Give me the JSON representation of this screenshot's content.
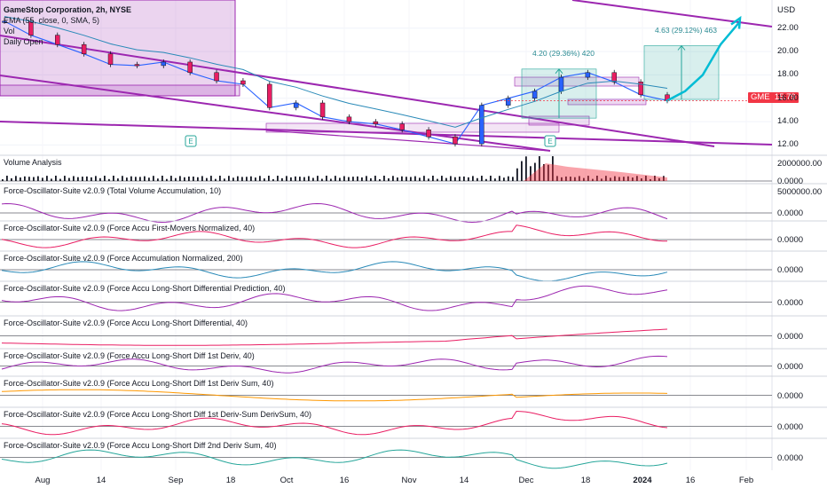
{
  "header": {
    "title": "GameStop Corporation, 2h, NYSE",
    "indicators": [
      "EMA (55, close, 0, SMA, 5)",
      "Vol",
      "Daily Open"
    ],
    "currency": "USD",
    "symbol": "GME",
    "last_price": "15.79"
  },
  "annotations": {
    "range1": "4.20 (29.36%) 420",
    "range2": "4.63 (29.12%) 463",
    "earnings_marker": "E"
  },
  "panes": [
    {
      "title": "Volume Analysis",
      "ticks": [
        "2000000.00",
        "0.0000"
      ]
    },
    {
      "title": "Force-Oscillator-Suite v2.0.9 (Total Volume Accumulation, 10)",
      "ticks": [
        "5000000.00",
        "0.0000"
      ]
    },
    {
      "title": "Force-Oscillator-Suite v2.0.9 (Force Accu First-Movers Normalized, 40)",
      "ticks": [
        "0.0000"
      ]
    },
    {
      "title": "Force-Oscillator-Suite v2.0.9 (Force Accumulation Normalized, 200)",
      "ticks": [
        "0.0000"
      ]
    },
    {
      "title": "Force-Oscillator-Suite v2.0.9 (Force Accu Long-Short Differential Prediction, 40)",
      "ticks": [
        "0.0000"
      ]
    },
    {
      "title": "Force-Oscillator-Suite v2.0.9 (Force Accu Long-Short Differential, 40)",
      "ticks": [
        "0.0000"
      ]
    },
    {
      "title": "Force-Oscillator-Suite v2.0.9 (Force Accu Long-Short Diff 1st Deriv, 40)",
      "ticks": [
        "0.0000"
      ]
    },
    {
      "title": "Force-Oscillator-Suite v2.0.9 (Force Accu Long-Short Diff 1st Deriv Sum, 40)",
      "ticks": [
        "0.0000"
      ]
    },
    {
      "title": "Force-Oscillator-Suite v2.0.9 (Force Accu Long-Short Diff 1st Deriv-Sum DerivSum, 40)",
      "ticks": [
        "0.0000"
      ]
    },
    {
      "title": "Force-Oscillator-Suite v2.0.9 (Force Accu Long-Short Diff 2nd Deriv Sum, 40)",
      "ticks": [
        "0.0000"
      ]
    }
  ],
  "chart_data": {
    "type": "line",
    "symbol": "GME",
    "interval": "2h",
    "price_axis_ticks": [
      "22.00",
      "20.00",
      "18.00",
      "16.00",
      "14.00",
      "12.00"
    ],
    "time_axis_labels": [
      "Aug",
      "14",
      "Sep",
      "18",
      "Oct",
      "16",
      "Nov",
      "14",
      "Dec",
      "18",
      "2024",
      "16",
      "Feb"
    ],
    "ylim": [
      11.5,
      23.5
    ],
    "price": {
      "x": [
        "Aug 1",
        "Aug 7",
        "Aug 14",
        "Aug 21",
        "Aug 28",
        "Sep 5",
        "Sep 11",
        "Sep 18",
        "Sep 25",
        "Oct 2",
        "Oct 9",
        "Oct 16",
        "Oct 23",
        "Oct 30",
        "Nov 6",
        "Nov 13",
        "Nov 20",
        "Nov 27",
        "Dec 1",
        "Dec 7",
        "Dec 11",
        "Dec 18",
        "Dec 22",
        "Dec 28",
        "Jan 3",
        "Jan 5"
      ],
      "values": [
        22.6,
        21.4,
        20.6,
        19.8,
        18.9,
        18.8,
        19.1,
        18.2,
        17.5,
        17.2,
        15.2,
        15.6,
        14.4,
        14.0,
        13.8,
        13.3,
        12.7,
        12.1,
        15.4,
        16.0,
        16.6,
        17.8,
        18.2,
        17.4,
        16.3,
        15.8
      ]
    },
    "projection_values": [
      15.8,
      16.6,
      18.0,
      20.6,
      22.4
    ],
    "measure_ranges": [
      {
        "label": "4.20 (29.36%) 420",
        "from": 14.3,
        "to": 18.5
      },
      {
        "label": "4.63 (29.12%) 463",
        "from": 15.9,
        "to": 20.5
      }
    ]
  }
}
